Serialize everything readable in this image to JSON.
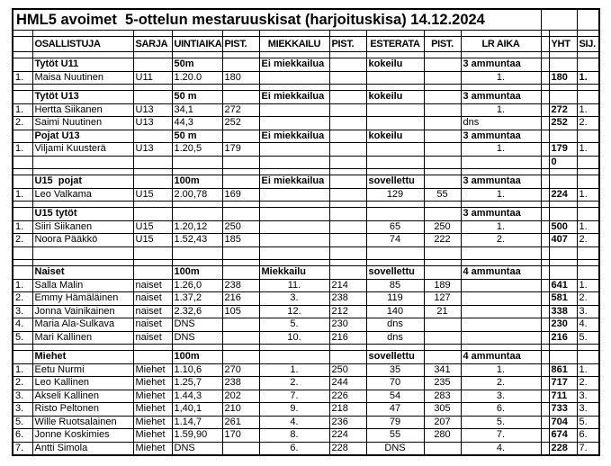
{
  "title": "HML5 avoimet  5-ottelun mestaruuskisat (harjoituskisa) 14.12.2024",
  "columns": [
    "",
    "OSALLISTUJA",
    "SARJA",
    "UINTIAIKA",
    "PIST.",
    "MIEKKAILU",
    "PIST.",
    "ESTERATA",
    "PIST.",
    "LR AIKA",
    "",
    "YHT",
    "SIJ."
  ],
  "rows": [
    {
      "k": "thin",
      "c": []
    },
    {
      "k": "section",
      "c": [
        "",
        "Tytöt U11",
        "",
        "50m",
        "",
        "Ei miekkailua",
        "",
        "kokeilu",
        "",
        "3 ammuntaa",
        "",
        "",
        ""
      ]
    },
    {
      "k": "entry",
      "c": [
        "1.",
        "Maisa Nuutinen",
        "U11",
        "1.20.0",
        "180",
        "",
        "",
        "",
        "",
        "1.",
        "",
        "180",
        "1."
      ],
      "sij_bold": true
    },
    {
      "k": "thin",
      "c": []
    },
    {
      "k": "section",
      "c": [
        "",
        "Tytöt U13",
        "",
        "50 m",
        "",
        "Ei miekkailua",
        "",
        "kokeilu",
        "",
        "3 ammuntaa",
        "",
        "",
        ""
      ]
    },
    {
      "k": "entry",
      "c": [
        "1.",
        "Hertta Siikanen",
        "U13",
        "34,1",
        "272",
        "",
        "",
        "",
        "",
        "1.",
        "",
        "272",
        "1."
      ]
    },
    {
      "k": "entry",
      "c": [
        "2.",
        "Saimi Nuutinen",
        "U13",
        "44,3",
        "252",
        "",
        "",
        "",
        "",
        "dns",
        "",
        "252",
        "2."
      ],
      "lr_left": true
    },
    {
      "k": "section",
      "c": [
        "",
        "Pojat U13",
        "",
        "50 m",
        "",
        "Ei miekkailua",
        "",
        "kokeilu",
        "",
        "3 ammuntaa",
        "",
        "",
        ""
      ]
    },
    {
      "k": "entry",
      "c": [
        "1.",
        "Viljami Kuusterä",
        "U13",
        "1.20,5",
        "179",
        "",
        "",
        "",
        "",
        "1.",
        "",
        "179",
        "1."
      ]
    },
    {
      "k": "entry",
      "c": [
        "",
        "",
        "",
        "",
        "",
        "",
        "",
        "",
        "",
        "",
        "",
        "0",
        ""
      ]
    },
    {
      "k": "thin",
      "c": []
    },
    {
      "k": "section",
      "c": [
        "",
        "U15  pojat",
        "",
        "100m",
        "",
        "Ei miekkailua",
        "",
        "sovellettu",
        "",
        "3 ammuntaa",
        "",
        "",
        ""
      ]
    },
    {
      "k": "entry",
      "c": [
        "1.",
        "Leo Valkama",
        "U15",
        "2.00,78",
        "169",
        "",
        "",
        "129",
        "55",
        "1.",
        "",
        "224",
        "1."
      ]
    },
    {
      "k": "thin",
      "c": []
    },
    {
      "k": "section",
      "c": [
        "",
        "U15 tytöt",
        "",
        "",
        "",
        "",
        "",
        "",
        "",
        "3 ammuntaa",
        "",
        "",
        ""
      ]
    },
    {
      "k": "entry",
      "c": [
        "1.",
        "Siiri Siikanen",
        "U15",
        "1.20,12",
        "250",
        "",
        "",
        "65",
        "250",
        "1.",
        "",
        "500",
        "1."
      ]
    },
    {
      "k": "entry",
      "c": [
        "2.",
        "Noora Pääkkö",
        "U15",
        "1.52,43",
        "185",
        "",
        "",
        "74",
        "222",
        "2.",
        "",
        "407",
        "2."
      ]
    },
    {
      "k": "entry",
      "c": [
        "",
        "",
        "",
        "",
        "",
        "",
        "",
        "",
        "",
        "",
        "",
        "",
        ""
      ]
    },
    {
      "k": "thin",
      "c": []
    },
    {
      "k": "section",
      "c": [
        "",
        "Naiset",
        "",
        "100m",
        "",
        "Miekkailu",
        "",
        "sovellettu",
        "",
        "4 ammuntaa",
        "",
        "",
        ""
      ]
    },
    {
      "k": "entry",
      "c": [
        "1.",
        "Salla Malin",
        "naiset",
        "1.26,0",
        "238",
        "11.",
        "214",
        "85",
        "189",
        "",
        "",
        "641",
        "1."
      ]
    },
    {
      "k": "entry",
      "c": [
        "2.",
        "Emmy Hämäläinen",
        "naiset",
        "1.37,2",
        "216",
        "3.",
        "238",
        "119",
        "127",
        "",
        "",
        "581",
        "2."
      ]
    },
    {
      "k": "entry",
      "c": [
        "3.",
        "Jonna Vainikainen",
        "naiset",
        "2.32,6",
        "105",
        "12.",
        "212",
        "140",
        "21",
        "",
        "",
        "338",
        "3."
      ]
    },
    {
      "k": "entry",
      "c": [
        "4.",
        "Maria Ala-Sulkava",
        "naiset",
        "DNS",
        "",
        "5.",
        "230",
        "dns",
        "",
        "",
        "",
        "230",
        "4."
      ]
    },
    {
      "k": "entry",
      "c": [
        "5.",
        "Mari Kallinen",
        "naiset",
        "DNS",
        "",
        "10.",
        "216",
        "dns",
        "",
        "",
        "",
        "216",
        "5."
      ]
    },
    {
      "k": "thin",
      "c": []
    },
    {
      "k": "section",
      "c": [
        "",
        "Miehet",
        "",
        "100m",
        "",
        "",
        "",
        "sovellettu",
        "",
        "4 ammuntaa",
        "",
        "",
        ""
      ]
    },
    {
      "k": "entry",
      "c": [
        "1.",
        "Eetu Nurmi",
        "Miehet",
        "1.10,6",
        "270",
        "1.",
        "250",
        "35",
        "341",
        "1.",
        "",
        "861",
        "1."
      ]
    },
    {
      "k": "entry",
      "c": [
        "2.",
        "Leo Kallinen",
        "Miehet",
        "1.25,7",
        "238",
        "2.",
        "244",
        "70",
        "235",
        "2.",
        "",
        "717",
        "2."
      ]
    },
    {
      "k": "entry",
      "c": [
        "3.",
        "Akseli Kallinen",
        "Miehet",
        "1.44,3",
        "202",
        "7.",
        "226",
        "54",
        "283",
        "3.",
        "",
        "711",
        "3."
      ]
    },
    {
      "k": "entry",
      "c": [
        "3.",
        "Risto Peltonen",
        "Miehet",
        "1,40,1",
        "210",
        "9.",
        "218",
        "47",
        "305",
        "6.",
        "",
        "733",
        "3."
      ]
    },
    {
      "k": "entry",
      "c": [
        "5.",
        "Wille Ruotsalainen",
        "Miehet",
        "1.14,7",
        "261",
        "4.",
        "236",
        "79",
        "207",
        "5.",
        "",
        "704",
        "5."
      ]
    },
    {
      "k": "entry",
      "c": [
        "6.",
        "Jonne Koskimies",
        "Miehet",
        "1.59,90",
        "170",
        "8.",
        "224",
        "55",
        "280",
        "7.",
        "",
        "674",
        "6."
      ]
    },
    {
      "k": "entry",
      "c": [
        "7.",
        "Antti Simola",
        "Miehet",
        "DNS",
        "",
        "6.",
        "228",
        "DNS",
        "",
        "4.",
        "",
        "228",
        "7."
      ]
    }
  ]
}
